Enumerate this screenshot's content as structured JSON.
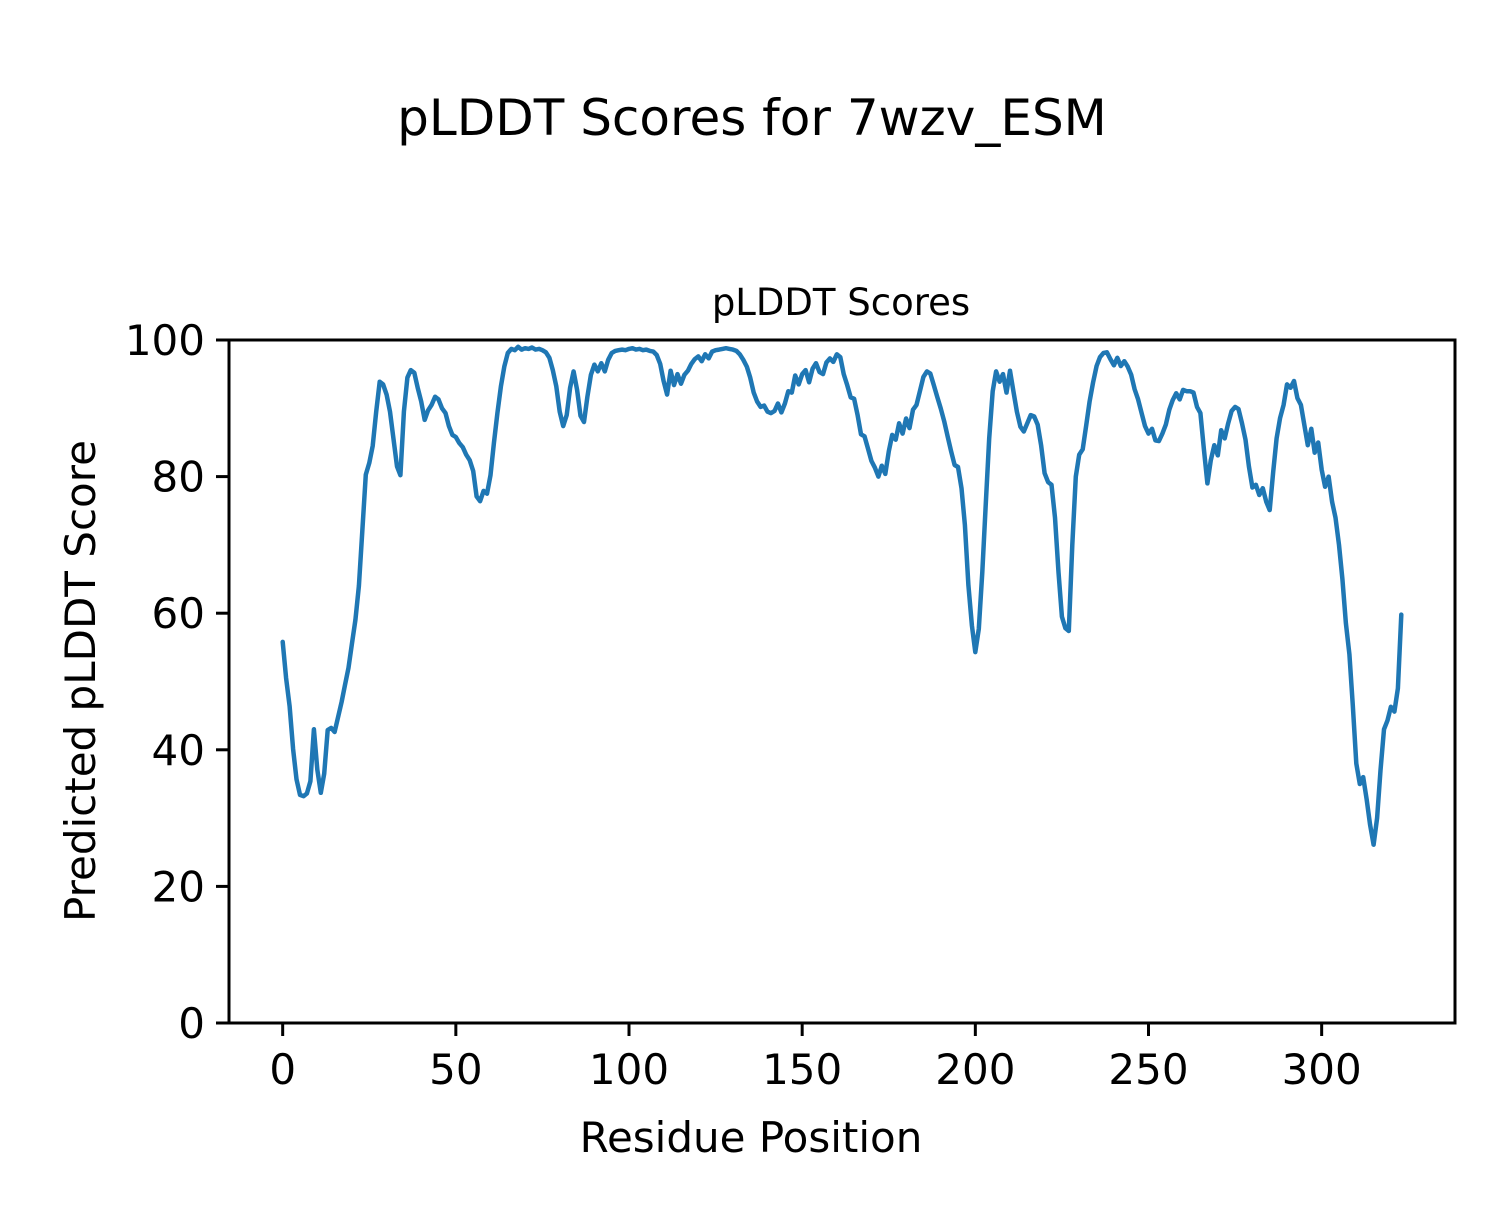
{
  "figure_title": "pLDDT Scores for 7wzv_ESM",
  "chart_data": {
    "type": "line",
    "title": "pLDDT Scores",
    "xlabel": "Residue Position",
    "ylabel": "Predicted pLDDT Score",
    "xlim": [
      -15.5,
      338.5
    ],
    "ylim": [
      0,
      100
    ],
    "x_ticks": [
      0,
      50,
      100,
      150,
      200,
      250,
      300
    ],
    "y_ticks": [
      0,
      20,
      40,
      60,
      80,
      100
    ],
    "grid": false,
    "legend_position": "none",
    "background_color": "#ffffff",
    "axis_color": "#000000",
    "series": [
      {
        "name": "pLDDT",
        "color": "#1f77b4",
        "x_start": 0,
        "x_step": 1,
        "values": [
          55.8,
          50.5,
          46.4,
          40.1,
          35.7,
          33.4,
          33.2,
          33.6,
          35.4,
          43.0,
          37.1,
          33.7,
          36.5,
          42.9,
          43.2,
          42.6,
          44.8,
          47.0,
          49.5,
          52.0,
          55.5,
          59.0,
          64.0,
          72.0,
          80.3,
          82.0,
          84.5,
          89.5,
          93.9,
          93.5,
          92.0,
          89.5,
          85.5,
          81.5,
          80.2,
          89.5,
          94.5,
          95.6,
          95.2,
          93.0,
          91.0,
          88.3,
          89.7,
          90.5,
          91.7,
          91.3,
          90.0,
          89.3,
          87.4,
          86.1,
          85.8,
          84.9,
          84.3,
          83.2,
          82.4,
          80.8,
          77.1,
          76.4,
          77.9,
          77.5,
          80.2,
          84.9,
          89.3,
          93.2,
          96.1,
          98.1,
          98.7,
          98.5,
          99.0,
          98.6,
          98.8,
          98.7,
          98.9,
          98.6,
          98.7,
          98.5,
          98.2,
          97.4,
          95.6,
          93.2,
          89.5,
          87.4,
          89.0,
          93.0,
          95.4,
          92.7,
          88.9,
          88.0,
          91.7,
          94.9,
          96.4,
          95.4,
          96.6,
          95.4,
          97.1,
          98.1,
          98.4,
          98.5,
          98.6,
          98.5,
          98.7,
          98.8,
          98.6,
          98.7,
          98.5,
          98.6,
          98.4,
          98.3,
          97.8,
          96.5,
          94.0,
          92.0,
          95.5,
          93.4,
          95.0,
          93.6,
          94.9,
          95.5,
          96.5,
          97.2,
          97.6,
          96.9,
          97.9,
          97.3,
          98.3,
          98.5,
          98.6,
          98.7,
          98.8,
          98.7,
          98.6,
          98.4,
          97.9,
          97.1,
          96.1,
          94.5,
          92.3,
          91.0,
          90.2,
          90.4,
          89.5,
          89.3,
          89.6,
          90.7,
          89.4,
          90.7,
          92.5,
          92.3,
          94.8,
          93.5,
          95.0,
          95.6,
          93.8,
          95.8,
          96.6,
          95.3,
          95.0,
          96.7,
          97.3,
          96.8,
          97.9,
          97.5,
          95.0,
          93.4,
          91.6,
          91.4,
          89.0,
          86.2,
          85.9,
          84.1,
          82.3,
          81.3,
          80.0,
          81.6,
          80.4,
          83.7,
          86.1,
          85.4,
          87.8,
          86.3,
          88.5,
          87.1,
          89.8,
          90.5,
          92.5,
          94.6,
          95.4,
          95.1,
          93.4,
          91.7,
          90.0,
          88.1,
          85.9,
          83.7,
          81.7,
          81.4,
          78.3,
          72.9,
          64.1,
          58.2,
          54.3,
          57.7,
          66.0,
          75.8,
          85.6,
          92.5,
          95.4,
          93.9,
          95.0,
          92.3,
          95.5,
          92.5,
          89.5,
          87.3,
          86.6,
          87.8,
          89.0,
          88.8,
          87.6,
          84.6,
          80.5,
          79.2,
          78.8,
          74.0,
          66.0,
          59.5,
          57.8,
          57.4,
          70.0,
          80.0,
          83.2,
          84.0,
          87.5,
          91.0,
          93.8,
          96.2,
          97.5,
          98.1,
          98.2,
          97.2,
          96.3,
          97.4,
          96.2,
          96.9,
          96.1,
          94.9,
          92.8,
          91.3,
          89.3,
          87.4,
          86.3,
          87.0,
          85.3,
          85.2,
          86.3,
          87.6,
          89.8,
          91.2,
          92.2,
          91.3,
          92.7,
          92.5,
          92.5,
          92.3,
          90.2,
          89.3,
          84.0,
          79.0,
          82.4,
          84.6,
          83.1,
          86.8,
          85.6,
          87.8,
          89.6,
          90.2,
          89.9,
          87.8,
          85.4,
          81.5,
          78.4,
          78.8,
          77.3,
          78.3,
          76.3,
          75.1,
          80.7,
          85.6,
          88.6,
          90.5,
          93.5,
          93.0,
          94.0,
          91.5,
          90.5,
          87.6,
          84.6,
          87.0,
          83.5,
          85.0,
          81.0,
          78.5,
          80.0,
          76.3,
          74.0,
          70.0,
          65.0,
          58.5,
          54.0,
          46.5,
          38.0,
          35.0,
          36.0,
          32.7,
          29.0,
          26.1,
          30.0,
          37.0,
          43.0,
          44.3,
          46.3,
          45.6,
          49.0,
          59.8
        ]
      }
    ]
  }
}
